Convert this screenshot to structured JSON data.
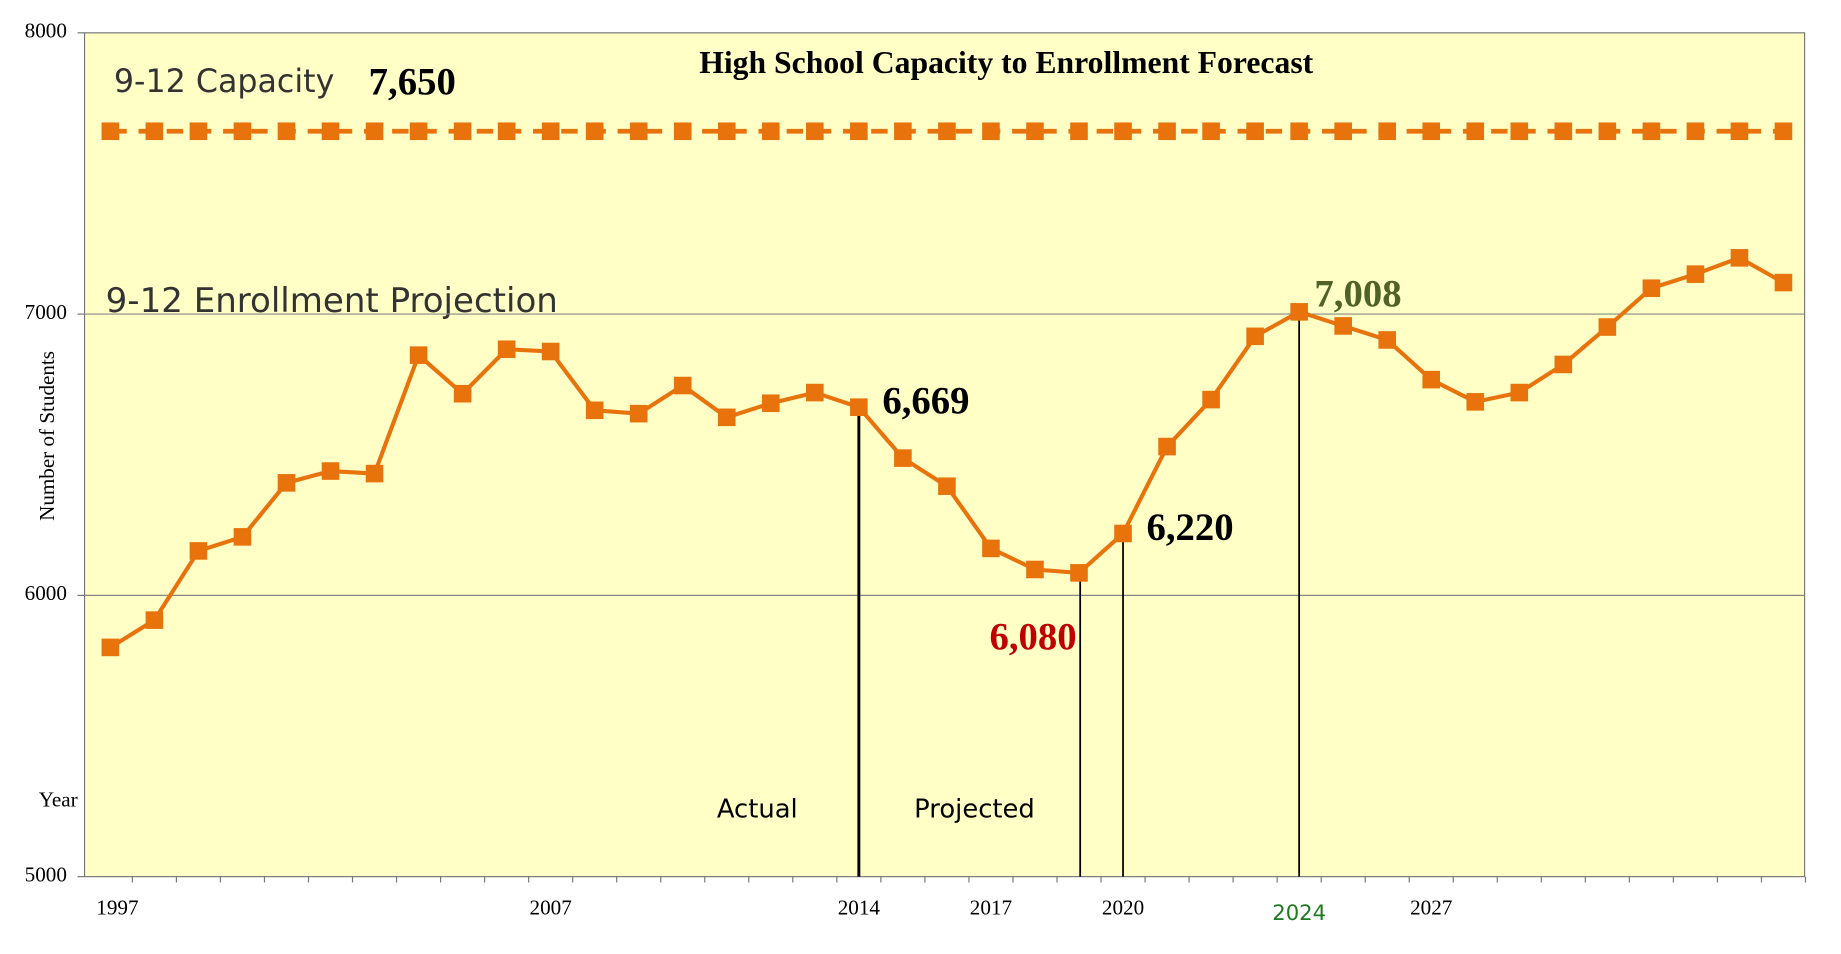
{
  "chart_data": {
    "type": "line",
    "title": "High School Capacity to Enrollment Forecast",
    "y_label": "Number of Students",
    "x_label": "Year",
    "annotations": [
      "Actual",
      "Projected"
    ],
    "categories": [
      "1997",
      null,
      null,
      null,
      null,
      null,
      null,
      null,
      null,
      null,
      "2007",
      null,
      null,
      null,
      null,
      null,
      null,
      "2014",
      null,
      null,
      "2017",
      null,
      null,
      "2020",
      null,
      null,
      null,
      "2024",
      null,
      null,
      "2027",
      null,
      null,
      null,
      null,
      null,
      null,
      null,
      null
    ],
    "ylim": [
      5000,
      8000
    ],
    "yticks": [
      5000,
      6000,
      7000,
      8000
    ],
    "grid": true,
    "series": [
      {
        "name": "9-12 Capacity",
        "color": "#e8730c",
        "dashed": true,
        "values": [
          7650,
          7650,
          7650,
          7650,
          7650,
          7650,
          7650,
          7650,
          7650,
          7650,
          7650,
          7650,
          7650,
          7650,
          7650,
          7650,
          7650,
          7650,
          7650,
          7650,
          7650,
          7650,
          7650,
          7650,
          7650,
          7650,
          7650,
          7650,
          7650,
          7650,
          7650,
          7650,
          7650,
          7650,
          7650,
          7650,
          7650,
          7650,
          7650
        ],
        "value_labels": [
          null,
          null,
          null,
          null,
          null,
          null,
          null,
          "7,650",
          null,
          null,
          null,
          null,
          null,
          null,
          null,
          null,
          null,
          null,
          null,
          null,
          null,
          null,
          null,
          null,
          null,
          null,
          null,
          null,
          null,
          null,
          null,
          null,
          null,
          null,
          null,
          null,
          null,
          null,
          null
        ]
      },
      {
        "name": "9-12 Enrollment Projection",
        "color": "#e8730c",
        "values": [
          5815,
          5912,
          6158,
          6208,
          6400,
          6442,
          6433,
          6854,
          6717,
          6875,
          6867,
          6658,
          6646,
          6746,
          6633,
          6683,
          6721,
          6669,
          6488,
          6388,
          6167,
          6092,
          6080,
          6220,
          6529,
          6696,
          6921,
          7008,
          6958,
          6908,
          6767,
          6688,
          6721,
          6821,
          6954,
          7092,
          7142,
          7200,
          7112
        ],
        "value_labels": [
          null,
          null,
          null,
          null,
          null,
          null,
          null,
          null,
          null,
          null,
          null,
          null,
          null,
          null,
          null,
          null,
          null,
          "6,669",
          null,
          null,
          null,
          null,
          "6,080",
          "6,220",
          null,
          null,
          null,
          "7,008",
          null,
          null,
          null,
          null,
          null,
          null,
          null,
          null,
          null,
          null,
          null
        ],
        "value_label_colors": [
          null,
          null,
          null,
          null,
          null,
          null,
          null,
          null,
          null,
          null,
          null,
          null,
          null,
          null,
          null,
          null,
          null,
          "#000000",
          null,
          null,
          null,
          null,
          "#c00000",
          "#000000",
          null,
          null,
          null,
          "#4f6228",
          null,
          null,
          null,
          null,
          null,
          null,
          null,
          null,
          null,
          null,
          null
        ]
      }
    ]
  }
}
